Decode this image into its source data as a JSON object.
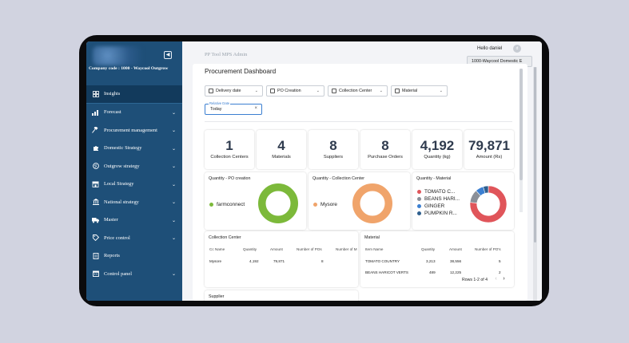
{
  "sidebar": {
    "company_label": "Company code : 1000 - Waycool Outgrow",
    "items": [
      {
        "label": "Insights",
        "icon": "grid-icon",
        "chevron": false,
        "active": true
      },
      {
        "label": "Forecast",
        "icon": "bar-chart-icon",
        "chevron": true
      },
      {
        "label": "Procurement management",
        "icon": "gavel-icon",
        "chevron": true
      },
      {
        "label": "Domestic Strategy",
        "icon": "puzzle-icon",
        "chevron": true
      },
      {
        "label": "Outgrow strategy",
        "icon": "globe-icon",
        "chevron": true
      },
      {
        "label": "Local Strategy",
        "icon": "storefront-icon",
        "chevron": true
      },
      {
        "label": "National strategy",
        "icon": "bank-icon",
        "chevron": true
      },
      {
        "label": "Master",
        "icon": "truck-icon",
        "chevron": true
      },
      {
        "label": "Price control",
        "icon": "price-tag-icon",
        "chevron": true
      },
      {
        "label": "Reports",
        "icon": "document-icon",
        "chevron": false
      },
      {
        "label": "Control panel",
        "icon": "calendar-icon",
        "chevron": true
      }
    ]
  },
  "header": {
    "app_title": "PP Tool MPS Admin",
    "greeting": "Hello daniel",
    "avatar_initial": "d",
    "company_chip": "1000-Waycool Domestic E"
  },
  "dashboard": {
    "title": "Procurement Dashboard",
    "filters": {
      "delivery_date": "Delivery date",
      "po_creation": "PO Creation",
      "collection_center": "Collection Center",
      "material": "Material",
      "relative_date_label": "Relative Date",
      "relative_date_value": "Today"
    },
    "kpis": [
      {
        "value": "1",
        "label": "Collection Centers"
      },
      {
        "value": "4",
        "label": "Materials"
      },
      {
        "value": "8",
        "label": "Suppliers"
      },
      {
        "value": "8",
        "label": "Purchase Orders"
      },
      {
        "value": "4,192",
        "label": "Quantity (kg)"
      },
      {
        "value": "79,871",
        "label": "Amount (Rs)"
      }
    ],
    "donuts": {
      "po_creation": {
        "title": "Quantity - PO creation",
        "legend": "farmconnect"
      },
      "collection_center": {
        "title": "Quantity - Collection Center",
        "legend": "Mysore"
      },
      "material": {
        "title": "Quantity - Material",
        "legend": [
          "TOMATO C...",
          "BEANS HARI...",
          "GINGER",
          "PUMPKIN R..."
        ]
      }
    },
    "collection_table": {
      "title": "Collection Center",
      "headers": [
        "Cc Name",
        "Quantity",
        "Amount",
        "Number of POs",
        "Number of M"
      ],
      "rows": [
        [
          "Mysore",
          "4,192",
          "79,871",
          "8",
          ""
        ]
      ]
    },
    "material_table": {
      "title": "Material",
      "headers": [
        "Item Name",
        "Quantity",
        "Amount",
        "Number of PO's"
      ],
      "rows": [
        [
          "TOMATO COUNTRY",
          "3,213",
          "38,556",
          "5"
        ],
        [
          "BEANS HARICOT VERTS",
          "489",
          "12,225",
          "2"
        ]
      ],
      "pager": "Rows 1-2 of 4"
    },
    "supplier_title": "Supplier"
  },
  "chart_data": [
    {
      "type": "pie",
      "title": "Quantity - PO creation",
      "categories": [
        "farmconnect"
      ],
      "values": [
        4192
      ],
      "style": "donut"
    },
    {
      "type": "pie",
      "title": "Quantity - Collection Center",
      "categories": [
        "Mysore"
      ],
      "values": [
        4192
      ],
      "style": "donut"
    },
    {
      "type": "pie",
      "title": "Quantity - Material",
      "categories": [
        "TOMATO COUNTRY",
        "BEANS HARICOT VERTS",
        "GINGER",
        "PUMPKIN RED"
      ],
      "values": [
        3213,
        489,
        300,
        190
      ],
      "style": "donut"
    }
  ],
  "colors": {
    "sidebar_bg": "#1e4f78",
    "donut_green": "#7cb93a",
    "donut_orange": "#f0a46b",
    "material_colors": [
      "#e0555a",
      "#8a8f98",
      "#3b7fd1",
      "#2e5f8e"
    ]
  }
}
